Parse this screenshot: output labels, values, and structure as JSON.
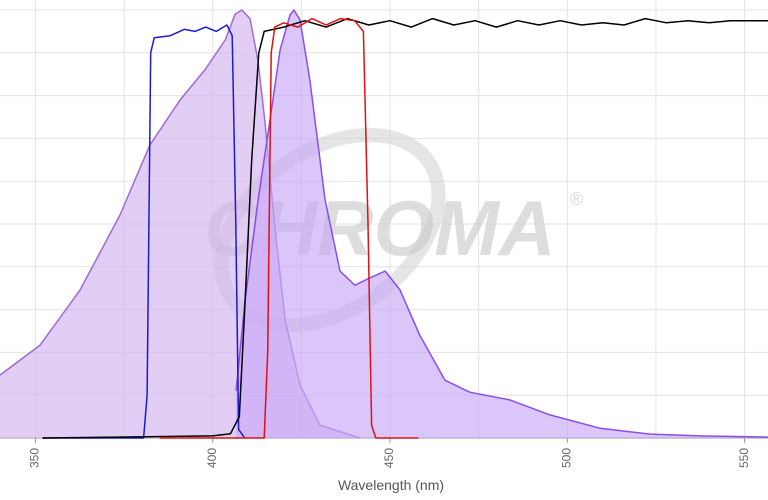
{
  "chart_data": {
    "type": "spectra",
    "x_label": "Wavelength (nm)",
    "watermark": "CHROMA",
    "watermark_mark": "®",
    "xlim": [
      340,
      556.6
    ],
    "xticks": [
      350,
      400,
      450,
      500,
      550
    ],
    "xminor": [
      375,
      425,
      475,
      525
    ],
    "ylim": [
      0,
      100
    ],
    "yticks": [
      0,
      10,
      20,
      30,
      40,
      50,
      60,
      70,
      80,
      90,
      100
    ],
    "grid": true,
    "series": [
      {
        "fill": "#d2b4f0",
        "color": "#a06ad8",
        "x": [
          340,
          351.3,
          362.6,
          373.8,
          382.3,
          390.8,
          397.8,
          403.5,
          406.3,
          408.2,
          410.5,
          412.8,
          414.7,
          417.6,
          420.4,
          424.6,
          430.2,
          441.5
        ],
        "values": [
          14.7,
          21.7,
          34.6,
          52,
          68.5,
          79,
          86,
          93,
          99,
          100,
          98,
          88,
          74,
          48.6,
          27.6,
          12.4,
          3,
          0
        ]
      },
      {
        "fill": "#c7a8f7",
        "color": "#8a4ee8",
        "x": [
          406.6,
          409.1,
          412.8,
          416.1,
          419,
          421.8,
          422.9,
          424.6,
          427.4,
          431.7,
          435.9,
          440.1,
          444.3,
          448.6,
          452.8,
          458.4,
          465.5,
          472.5,
          483.8,
          495.1,
          509.2,
          523.3,
          537.4,
          556.6
        ],
        "values": [
          11,
          32,
          55.6,
          74,
          90.7,
          98.8,
          100,
          97.7,
          83.6,
          55.6,
          39,
          35.7,
          37.4,
          39,
          34.6,
          24,
          13.5,
          10.7,
          8.9,
          5.4,
          2.3,
          0.9,
          0.5,
          0.2
        ]
      },
      {
        "color": "#1a1ad6",
        "x": [
          352,
          380.5,
          381.5,
          382.5,
          383.5,
          388,
          392,
          395,
          398,
          401,
          404,
          405.5,
          406.5,
          407.3,
          409
        ],
        "values": [
          0,
          0,
          10,
          90,
          93.5,
          94,
          95.5,
          95,
          96,
          95,
          96.5,
          94,
          50,
          2,
          0
        ]
      },
      {
        "color": "#000000",
        "x": [
          352,
          400,
          405,
          407.5,
          409,
          411,
          413,
          414.5,
          420,
          426,
          432,
          438,
          444,
          450,
          456,
          462,
          468,
          474,
          480,
          486,
          492,
          498,
          504,
          510,
          516,
          522,
          528,
          534,
          540,
          546,
          556.6
        ],
        "values": [
          0,
          0.5,
          1,
          5,
          30,
          65,
          90,
          95,
          96,
          97.5,
          96,
          98,
          96.5,
          97.5,
          96,
          98,
          96.5,
          97.5,
          96,
          97.5,
          96.5,
          97.5,
          96.5,
          97,
          96.5,
          98,
          97,
          97.5,
          97,
          97.5,
          97.5
        ]
      },
      {
        "color": "#e01010",
        "x": [
          385,
          414.5,
          415.5,
          416.5,
          417.5,
          420,
          424,
          428,
          432,
          436,
          440,
          442.5,
          443.8,
          444.8,
          446,
          458
        ],
        "values": [
          0,
          0,
          20,
          90,
          96,
          97,
          96,
          98,
          96.5,
          98,
          97.5,
          95,
          50,
          3,
          0,
          0
        ]
      }
    ]
  }
}
